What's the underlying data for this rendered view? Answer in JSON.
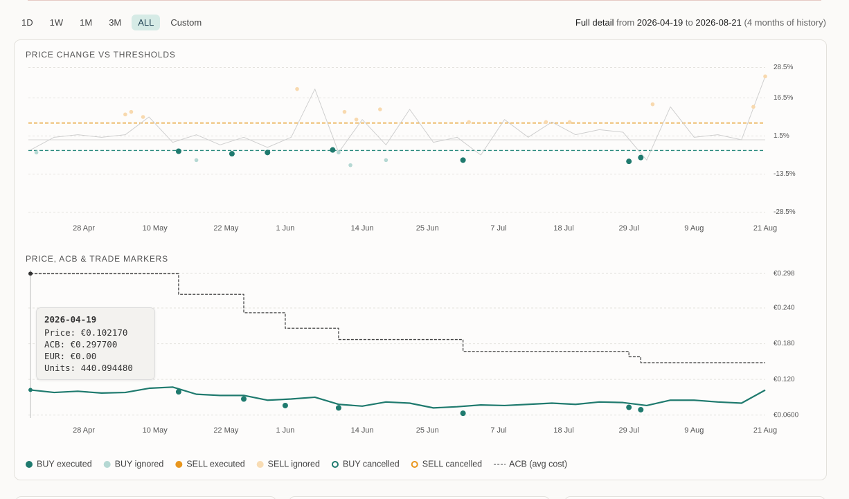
{
  "toolbar": {
    "ranges": [
      "1D",
      "1W",
      "1M",
      "3M",
      "ALL",
      "Custom"
    ],
    "active": "ALL"
  },
  "detail": {
    "label": "Full detail",
    "from_word": "from",
    "from": "2026-04-19",
    "to_word": "to",
    "to": "2026-08-21",
    "history": "(4 months of history)"
  },
  "chart_data": [
    {
      "type": "line",
      "title": "PRICE CHANGE VS THRESHOLDS",
      "xlim": [
        "2026-04-19",
        "2026-08-21"
      ],
      "xticks": [
        {
          "value": "2026-04-28",
          "label": "28 Apr"
        },
        {
          "value": "2026-05-10",
          "label": "10 May"
        },
        {
          "value": "2026-05-22",
          "label": "22 May"
        },
        {
          "value": "2026-06-01",
          "label": "1 Jun"
        },
        {
          "value": "2026-06-14",
          "label": "14 Jun"
        },
        {
          "value": "2026-06-25",
          "label": "25 Jun"
        },
        {
          "value": "2026-07-07",
          "label": "7 Jul"
        },
        {
          "value": "2026-07-18",
          "label": "18 Jul"
        },
        {
          "value": "2026-07-29",
          "label": "29 Jul"
        },
        {
          "value": "2026-08-09",
          "label": "9 Aug"
        },
        {
          "value": "2026-08-21",
          "label": "21 Aug"
        }
      ],
      "ylim": [
        -30,
        30
      ],
      "yticks": [
        {
          "value": 28.5,
          "label": "28.5%"
        },
        {
          "value": 16.5,
          "label": "16.5%"
        },
        {
          "value": 1.5,
          "label": "1.5%"
        },
        {
          "value": -13.5,
          "label": "-13.5%"
        },
        {
          "value": -28.5,
          "label": "-28.5%"
        }
      ],
      "grid": true,
      "thresholds": [
        {
          "value": 6.6,
          "color": "#e8a030"
        },
        {
          "value": -4.2,
          "color": "#2a8a7e"
        }
      ],
      "series": [
        {
          "color": "#cfcfcf",
          "x": [
            "2026-04-19",
            "2026-04-23",
            "2026-04-27",
            "2026-05-01",
            "2026-05-05",
            "2026-05-09",
            "2026-05-13",
            "2026-05-17",
            "2026-05-21",
            "2026-05-25",
            "2026-05-29",
            "2026-06-02",
            "2026-06-06",
            "2026-06-10",
            "2026-06-14",
            "2026-06-18",
            "2026-06-22",
            "2026-06-26",
            "2026-06-30",
            "2026-07-04",
            "2026-07-08",
            "2026-07-12",
            "2026-07-16",
            "2026-07-20",
            "2026-07-24",
            "2026-07-28",
            "2026-08-01",
            "2026-08-05",
            "2026-08-09",
            "2026-08-13",
            "2026-08-17",
            "2026-08-21"
          ],
          "values": [
            -4,
            1,
            2,
            1,
            2,
            9,
            -1,
            2,
            -2,
            1,
            -3,
            1,
            20,
            -5,
            8,
            -2,
            12,
            -1,
            1,
            -6,
            8,
            1,
            7,
            2,
            4,
            3,
            -8,
            13,
            1,
            2,
            0,
            25
          ]
        }
      ],
      "markers": [
        {
          "color": "#b5d8d3",
          "emphasis": false,
          "x": [
            "2026-04-20",
            "2026-05-17",
            "2026-06-10",
            "2026-06-12",
            "2026-06-18"
          ],
          "values": [
            -5,
            -8,
            -5,
            -10,
            -8
          ]
        },
        {
          "color": "#f8d9ae",
          "emphasis": false,
          "x": [
            "2026-05-05",
            "2026-05-06",
            "2026-05-08",
            "2026-06-03",
            "2026-06-11",
            "2026-06-13",
            "2026-06-17",
            "2026-07-02",
            "2026-07-15",
            "2026-07-19",
            "2026-08-02",
            "2026-08-19",
            "2026-08-21"
          ],
          "values": [
            10,
            11,
            9,
            20,
            11,
            8,
            12,
            7,
            7,
            7,
            14,
            13,
            25
          ]
        },
        {
          "color": "#1f7a6e",
          "emphasis": true,
          "x": [
            "2026-05-14",
            "2026-05-23",
            "2026-05-29",
            "2026-06-09",
            "2026-07-01",
            "2026-07-29",
            "2026-07-31"
          ],
          "values": [
            -4.5,
            -5.5,
            -5,
            -4,
            -8,
            -8.5,
            -7
          ]
        }
      ]
    },
    {
      "type": "line",
      "title": "PRICE, ACB & TRADE MARKERS",
      "xlim": [
        "2026-04-19",
        "2026-08-21"
      ],
      "xticks": [
        {
          "value": "2026-04-28",
          "label": "28 Apr"
        },
        {
          "value": "2026-05-10",
          "label": "10 May"
        },
        {
          "value": "2026-05-22",
          "label": "22 May"
        },
        {
          "value": "2026-06-01",
          "label": "1 Jun"
        },
        {
          "value": "2026-06-14",
          "label": "14 Jun"
        },
        {
          "value": "2026-06-25",
          "label": "25 Jun"
        },
        {
          "value": "2026-07-07",
          "label": "7 Jul"
        },
        {
          "value": "2026-07-18",
          "label": "18 Jul"
        },
        {
          "value": "2026-07-29",
          "label": "29 Jul"
        },
        {
          "value": "2026-08-09",
          "label": "9 Aug"
        },
        {
          "value": "2026-08-21",
          "label": "21 Aug"
        }
      ],
      "ylim": [
        0.055,
        0.304
      ],
      "yticks": [
        {
          "value": 0.298,
          "label": "€0.298"
        },
        {
          "value": 0.24,
          "label": "€0.240"
        },
        {
          "value": 0.18,
          "label": "€0.180"
        },
        {
          "value": 0.12,
          "label": "€0.120"
        },
        {
          "value": 0.06,
          "label": "€0.0600"
        }
      ],
      "grid": true,
      "series": [
        {
          "color": "#1f7a6e",
          "step": false,
          "x": [
            "2026-04-19",
            "2026-04-23",
            "2026-04-27",
            "2026-05-01",
            "2026-05-05",
            "2026-05-09",
            "2026-05-13",
            "2026-05-17",
            "2026-05-21",
            "2026-05-25",
            "2026-05-29",
            "2026-06-02",
            "2026-06-06",
            "2026-06-10",
            "2026-06-14",
            "2026-06-18",
            "2026-06-22",
            "2026-06-26",
            "2026-06-30",
            "2026-07-04",
            "2026-07-08",
            "2026-07-12",
            "2026-07-16",
            "2026-07-20",
            "2026-07-24",
            "2026-07-28",
            "2026-08-01",
            "2026-08-05",
            "2026-08-09",
            "2026-08-13",
            "2026-08-17",
            "2026-08-21"
          ],
          "values": [
            0.1022,
            0.098,
            0.1,
            0.097,
            0.098,
            0.105,
            0.107,
            0.095,
            0.093,
            0.093,
            0.085,
            0.087,
            0.09,
            0.078,
            0.075,
            0.082,
            0.08,
            0.072,
            0.074,
            0.077,
            0.076,
            0.078,
            0.08,
            0.078,
            0.082,
            0.081,
            0.076,
            0.085,
            0.085,
            0.082,
            0.08,
            0.102
          ]
        },
        {
          "color": "#444444",
          "step": true,
          "x": [
            "2026-04-19",
            "2026-05-14",
            "2026-05-25",
            "2026-06-01",
            "2026-06-10",
            "2026-07-01",
            "2026-07-29",
            "2026-07-31",
            "2026-08-21"
          ],
          "values": [
            0.2977,
            0.263,
            0.232,
            0.206,
            0.187,
            0.167,
            0.158,
            0.148,
            0.148
          ]
        }
      ],
      "markers": [
        {
          "color": "#1f7a6e",
          "emphasis": true,
          "x": [
            "2026-05-14",
            "2026-05-25",
            "2026-06-01",
            "2026-06-10",
            "2026-07-01",
            "2026-07-29",
            "2026-07-31"
          ],
          "values": [
            0.099,
            0.087,
            0.076,
            0.072,
            0.063,
            0.073,
            0.069
          ]
        }
      ]
    }
  ],
  "legend": [
    {
      "name": "BUY executed",
      "color": "#1f7a6e",
      "style": "dot"
    },
    {
      "name": "BUY ignored",
      "color": "#b5d8d3",
      "style": "dot"
    },
    {
      "name": "SELL executed",
      "color": "#e8961e",
      "style": "dot"
    },
    {
      "name": "SELL ignored",
      "color": "#f8dcb4",
      "style": "dot"
    },
    {
      "name": "BUY cancelled",
      "color": "#1f7a6e",
      "style": "ring"
    },
    {
      "name": "SELL cancelled",
      "color": "#e8961e",
      "style": "ring"
    },
    {
      "name": "ACB (avg cost)",
      "color": "#444444",
      "style": "dash"
    }
  ],
  "tooltip": {
    "date": "2026-04-19",
    "lines": [
      "Price: €0.102170",
      "ACB: €0.297700",
      "EUR: €0.00",
      "Units: 440.094480"
    ]
  }
}
